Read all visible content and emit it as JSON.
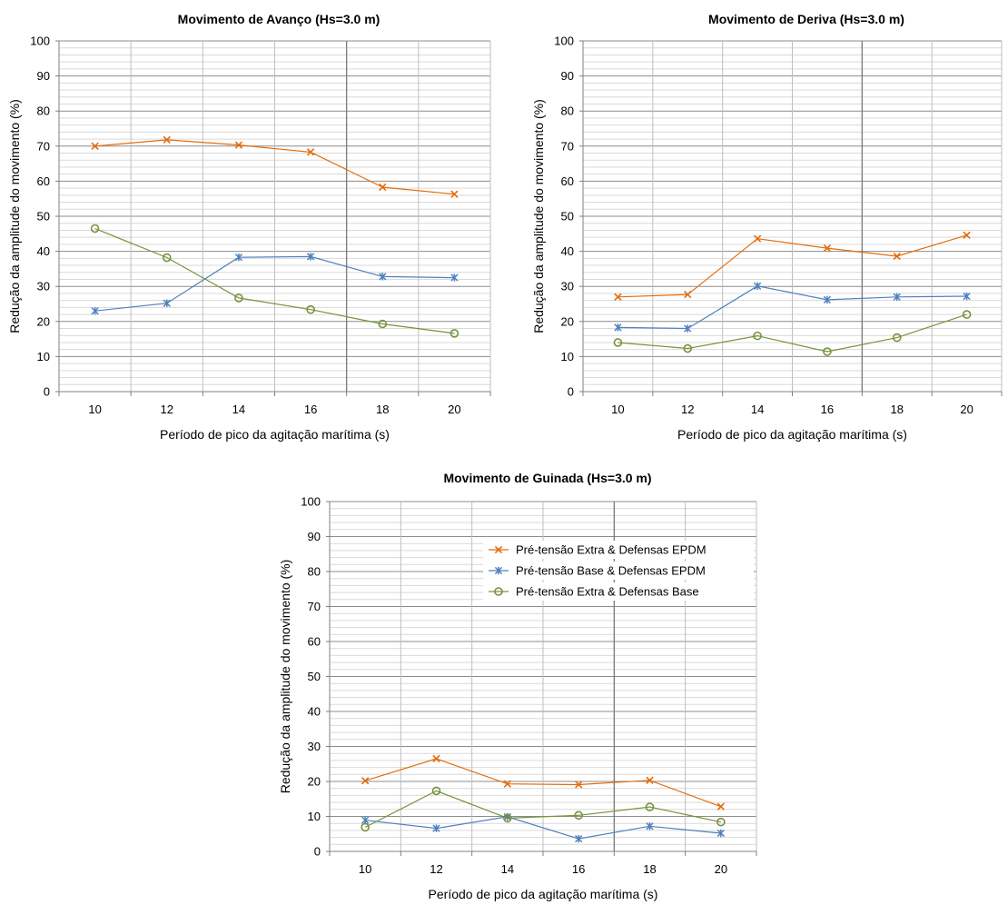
{
  "chart_data": [
    {
      "type": "line",
      "title": "Movimento de Avanço  (Hs=3.0 m)",
      "xlabel": "Período de pico da agitação marítima (s)",
      "ylabel": "Redução da amplitude do movimento (%)",
      "categories": [
        "10",
        "12",
        "14",
        "16",
        "18",
        "20"
      ],
      "ylim": [
        0,
        100
      ],
      "yticks": [
        "0",
        "10",
        "20",
        "30",
        "40",
        "50",
        "60",
        "70",
        "80",
        "90",
        "100"
      ],
      "grid": true,
      "series": [
        {
          "name": "Pré-tensão Extra & Defensas EPDM",
          "marker": "x",
          "color": "#E46C0A",
          "values": [
            70,
            71.8,
            70.3,
            68.3,
            58.3,
            56.3
          ]
        },
        {
          "name": "Pré-tensão Base & Defensas EPDM",
          "marker": "asterisk",
          "color": "#4F81BD",
          "values": [
            23,
            25.2,
            38.3,
            38.5,
            32.8,
            32.5
          ]
        },
        {
          "name": "Pré-tensão Extra & Defensas Base",
          "marker": "circle",
          "color": "#77933C",
          "values": [
            46.5,
            38.2,
            26.7,
            23.4,
            19.3,
            16.6
          ]
        }
      ]
    },
    {
      "type": "line",
      "title": "Movimento de Deriva  (Hs=3.0 m)",
      "xlabel": "Período de pico da agitação marítima (s)",
      "ylabel": "Redução da amplitude do movimento (%)",
      "categories": [
        "10",
        "12",
        "14",
        "16",
        "18",
        "20"
      ],
      "ylim": [
        0,
        100
      ],
      "yticks": [
        "0",
        "10",
        "20",
        "30",
        "40",
        "50",
        "60",
        "70",
        "80",
        "90",
        "100"
      ],
      "grid": true,
      "series": [
        {
          "name": "Pré-tensão Extra & Defensas EPDM",
          "marker": "x",
          "color": "#E46C0A",
          "values": [
            27,
            27.7,
            43.6,
            40.9,
            38.6,
            44.6
          ]
        },
        {
          "name": "Pré-tensão Base & Defensas EPDM",
          "marker": "asterisk",
          "color": "#4F81BD",
          "values": [
            18.3,
            18,
            30.1,
            26.2,
            27,
            27.2
          ]
        },
        {
          "name": "Pré-tensão Extra & Defensas Base",
          "marker": "circle",
          "color": "#77933C",
          "values": [
            14,
            12.3,
            15.9,
            11.4,
            15.4,
            22
          ]
        }
      ]
    },
    {
      "type": "line",
      "title": "Movimento de Guinada  (Hs=3.0 m)",
      "xlabel": "Período de pico da agitação marítima (s)",
      "ylabel": "Redução da amplitude do movimento (%)",
      "categories": [
        "10",
        "12",
        "14",
        "16",
        "18",
        "20"
      ],
      "ylim": [
        0,
        100
      ],
      "yticks": [
        "0",
        "10",
        "20",
        "30",
        "40",
        "50",
        "60",
        "70",
        "80",
        "90",
        "100"
      ],
      "grid": true,
      "legend": "upper-right",
      "series": [
        {
          "name": "Pré-tensão Extra & Defensas EPDM",
          "marker": "x",
          "color": "#E46C0A",
          "values": [
            20.2,
            26.5,
            19.3,
            19.1,
            20.3,
            12.8
          ]
        },
        {
          "name": "Pré-tensão Base & Defensas EPDM",
          "marker": "asterisk",
          "color": "#4F81BD",
          "values": [
            8.9,
            6.6,
            9.9,
            3.6,
            7.2,
            5.2
          ]
        },
        {
          "name": "Pré-tensão Extra & Defensas Base",
          "marker": "circle",
          "color": "#77933C",
          "values": [
            6.9,
            17.3,
            9.5,
            10.3,
            12.7,
            8.4
          ]
        }
      ]
    }
  ]
}
